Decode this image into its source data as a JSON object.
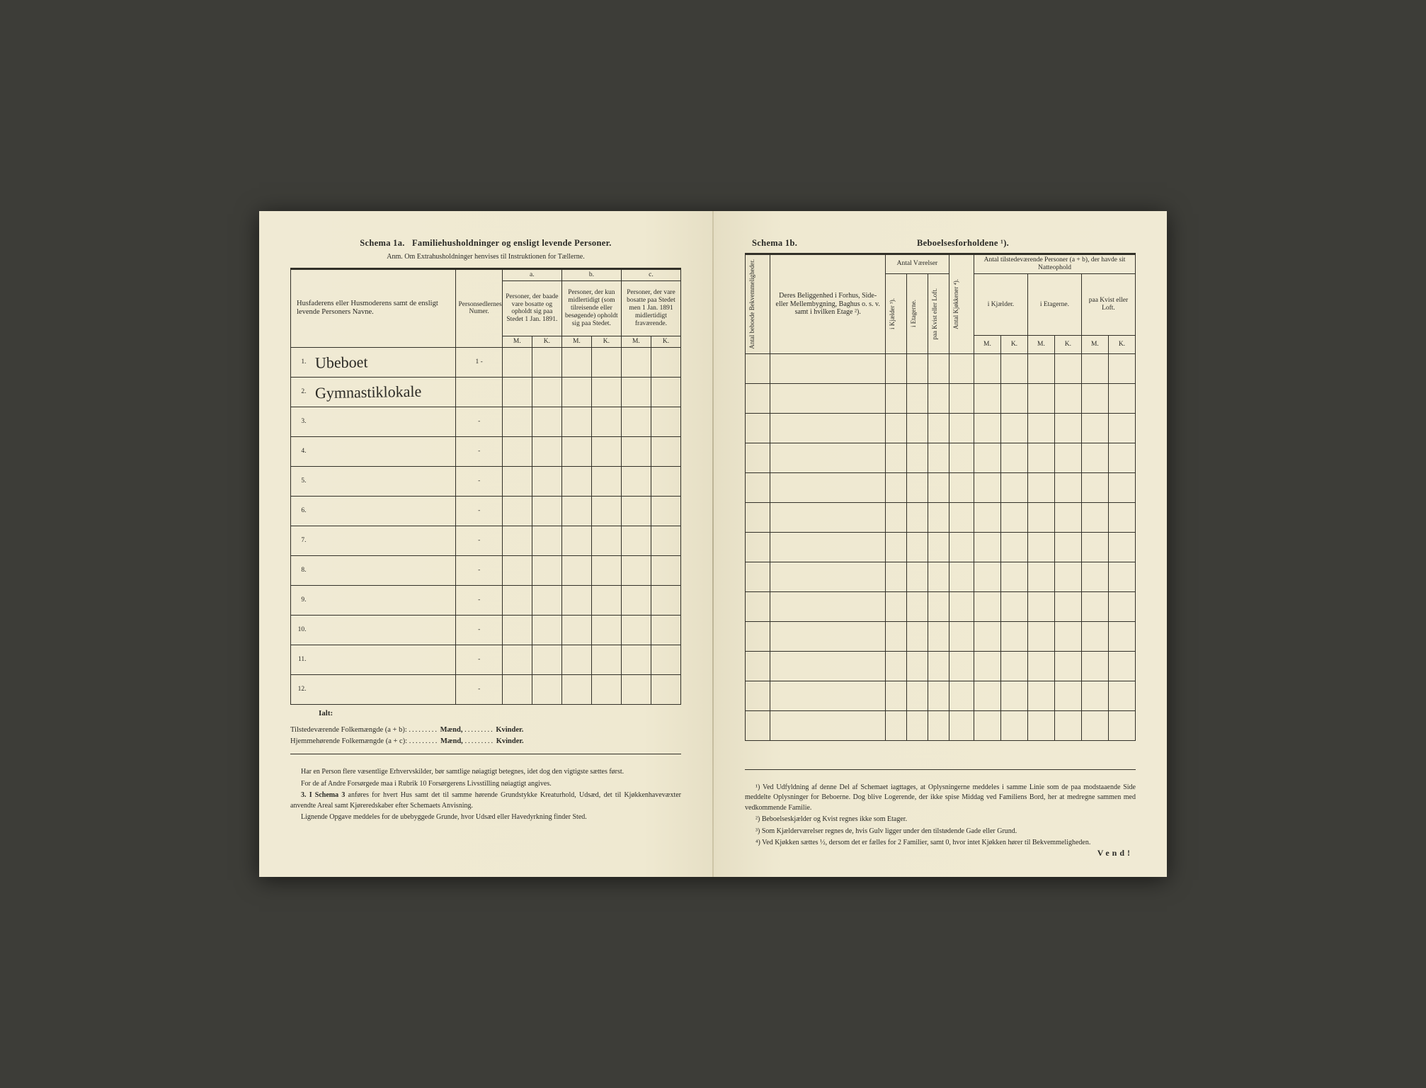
{
  "colors": {
    "paper": "#efe9d3",
    "ink": "#2a2a26",
    "rule": "#323028",
    "bg": "#3d3d38"
  },
  "left": {
    "schema_label": "Schema 1a.",
    "schema_title": "Familiehusholdninger og ensligt levende Personer.",
    "anm": "Anm. Om Extrahusholdninger henvises til Instruktionen for Tællerne.",
    "col_names": "Husfaderens eller Husmoderens samt de ensligt levende Personers Navne.",
    "col_person": "Personsedlernes Numer.",
    "col_a_label": "a.",
    "col_a": "Personer, der baade vare bosatte og opholdt sig paa Stedet 1 Jan. 1891.",
    "col_b_label": "b.",
    "col_b": "Personer, der kun midlertidigt (som tilreisende eller besøgende) opholdt sig paa Stedet.",
    "col_c_label": "c.",
    "col_c": "Personer, der vare bosatte paa Stedet men 1 Jan. 1891 midlertidigt fraværende.",
    "mk_m": "M.",
    "mk_k": "K.",
    "rows": [
      {
        "n": "1.",
        "name": "Ubeboet",
        "p": "1 -"
      },
      {
        "n": "2.",
        "name": "Gymnastiklokale",
        "p": ""
      },
      {
        "n": "3.",
        "name": "",
        "p": "-"
      },
      {
        "n": "4.",
        "name": "",
        "p": "-"
      },
      {
        "n": "5.",
        "name": "",
        "p": "-"
      },
      {
        "n": "6.",
        "name": "",
        "p": "-"
      },
      {
        "n": "7.",
        "name": "",
        "p": "-"
      },
      {
        "n": "8.",
        "name": "",
        "p": "-"
      },
      {
        "n": "9.",
        "name": "",
        "p": "-"
      },
      {
        "n": "10.",
        "name": "",
        "p": "-"
      },
      {
        "n": "11.",
        "name": "",
        "p": "-"
      },
      {
        "n": "12.",
        "name": "",
        "p": "-"
      }
    ],
    "ialt": "Ialt:",
    "tot1_label": "Tilstedeværende Folkemængde (a + b):",
    "tot2_label": "Hjemmehørende Folkemængde (a + c):",
    "maend": "Mænd,",
    "kvinder": "Kvinder.",
    "note1": "Har en Person flere væsentlige Erhvervskilder, bør samtlige nøiagtigt betegnes, idet dog den vigtigste sættes først.",
    "note2": "For de af Andre Forsørgede maa i Rubrik 10 Forsørgerens Livsstilling nøiagtigt angives.",
    "note3_lead": "3. I Schema 3",
    "note3": " anføres for hvert Hus samt det til samme hørende Grundstykke Kreaturhold, Udsæd, det til Kjøkkenhavevæxter anvendte Areal samt Kjøreredskaber efter Schemaets Anvisning.",
    "note4": "Lignende Opgave meddeles for de ubebyggede Grunde, hvor Udsæd eller Havedyrkning finder Sted."
  },
  "right": {
    "schema_label": "Schema 1b.",
    "schema_title": "Beboelsesforholdene ¹).",
    "col_bekv": "Antal beboede Bekvemmeligheder.",
    "col_belig": "Deres Beliggenhed i Forhus, Side- eller Mellembygning, Baghus o. s. v. samt i hvilken Etage ²).",
    "col_vaer": "Antal Værelser",
    "col_kj": "i Kjælder ³).",
    "col_et": "i Etagerne.",
    "col_kv": "paa Kvist eller Loft.",
    "col_kjok": "Antal Kjøkkener ⁴).",
    "col_pers": "Antal tilstedeværende Personer (a + b), der havde sit Natteophold",
    "col_p_kj": "i Kjælder.",
    "col_p_et": "i Etagerne.",
    "col_p_kv": "paa Kvist eller Loft.",
    "mk_m": "M.",
    "mk_k": "K.",
    "row_count": 13,
    "fn1": "¹) Ved Udfyldning af denne Del af Schemaet iagttages, at Oplysningerne meddeles i samme Linie som de paa modstaaende Side meddelte Oplysninger for Beboerne. Dog blive Logerende, der ikke spise Middag ved Familiens Bord, her at medregne sammen med vedkommende Familie.",
    "fn2": "²) Beboelseskjælder og Kvist regnes ikke som Etager.",
    "fn3": "³) Som Kjælderværelser regnes de, hvis Gulv ligger under den tilstødende Gade eller Grund.",
    "fn4": "⁴) Ved Kjøkken sættes ½, dersom det er fælles for 2 Familier, samt 0, hvor intet Kjøkken hører til Bekvemmeligheden.",
    "vend": "Vend!"
  }
}
